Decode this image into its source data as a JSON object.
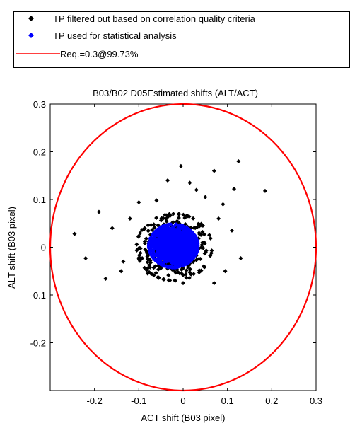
{
  "chart_data": {
    "type": "scatter",
    "title": "B03/B02 D05Estimated shifts (ALT/ACT)",
    "xlabel": "ACT shift (B03 pixel)",
    "ylabel": "ALT shift (B03 pixel)",
    "xlim": [
      -0.3,
      0.3
    ],
    "ylim": [
      -0.3,
      0.3
    ],
    "xticks": [
      -0.2,
      -0.1,
      0,
      0.1,
      0.2,
      0.3
    ],
    "xtick_labels": [
      "-0.2",
      "-0.1",
      "0",
      "0.1",
      "0.2",
      "0.3"
    ],
    "yticks": [
      -0.2,
      -0.1,
      0,
      0.1,
      0.2,
      0.3
    ],
    "ytick_labels": [
      "-0.2",
      "-0.1",
      "0",
      "0.1",
      "0.2",
      "0.3"
    ],
    "grid": false,
    "legend_position": "top",
    "legend": [
      {
        "label": "TP filtered out based on correlation quality criteria",
        "marker": "diamond",
        "color": "#000000"
      },
      {
        "label": "TP used for statistical analysis",
        "marker": "diamond",
        "color": "#0000ff"
      },
      {
        "label": "Req.=0.3@99.73%",
        "marker": "line",
        "color": "#ff0000"
      }
    ],
    "series": [
      {
        "name": "TP filtered out based on correlation quality criteria",
        "color": "#000000",
        "marker": "diamond",
        "cluster": {
          "center": [
            -0.02,
            0.0
          ],
          "radius": [
            0.085,
            0.07
          ],
          "count": 520
        },
        "points": [
          [
            -0.245,
            0.028
          ],
          [
            -0.22,
            -0.023
          ],
          [
            -0.19,
            0.074
          ],
          [
            -0.175,
            -0.066
          ],
          [
            -0.16,
            0.04
          ],
          [
            -0.135,
            -0.03
          ],
          [
            -0.1,
            0.094
          ],
          [
            -0.06,
            0.098
          ],
          [
            -0.035,
            0.14
          ],
          [
            -0.005,
            0.17
          ],
          [
            0.015,
            0.135
          ],
          [
            0.03,
            0.12
          ],
          [
            0.05,
            0.105
          ],
          [
            0.07,
            0.16
          ],
          [
            0.09,
            0.09
          ],
          [
            0.115,
            0.122
          ],
          [
            0.125,
            0.18
          ],
          [
            0.185,
            0.118
          ],
          [
            0.11,
            0.035
          ],
          [
            0.13,
            -0.023
          ],
          [
            0.095,
            -0.05
          ],
          [
            0.07,
            -0.075
          ],
          [
            -0.08,
            -0.055
          ],
          [
            0.0,
            -0.075
          ],
          [
            -0.12,
            0.06
          ],
          [
            -0.14,
            -0.05
          ],
          [
            0.08,
            0.06
          ]
        ]
      },
      {
        "name": "TP used for statistical analysis",
        "color": "#0000ff",
        "marker": "diamond",
        "cluster": {
          "center": [
            -0.022,
            0.003
          ],
          "radius": [
            0.055,
            0.045
          ],
          "count": 1800
        },
        "points": []
      },
      {
        "name": "Req.=0.3@99.73%",
        "color": "#ff0000",
        "type": "circle",
        "center": [
          0,
          0
        ],
        "radius": 0.3
      }
    ]
  }
}
